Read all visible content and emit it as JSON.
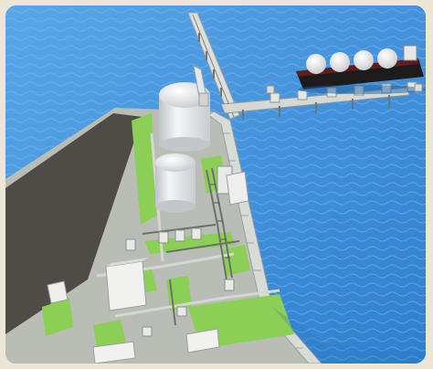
{
  "image": {
    "subject": "",
    "colors": {
      "water": "#3f8fd8",
      "grass": "#8ccf55",
      "pavement": "#b9bdb6",
      "seawall": "#d8dcd6",
      "dark_land": "#4f4c48",
      "tank": "#e9ecee",
      "ship_hull": "#1c1c1c",
      "frame": "#ece6d6"
    }
  }
}
